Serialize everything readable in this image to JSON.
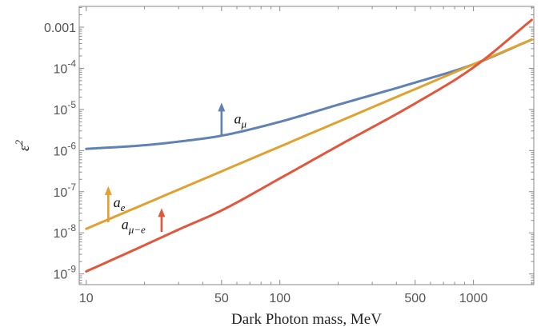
{
  "chart_data": {
    "type": "line",
    "title": "",
    "xlabel": "Dark Photon mass, MeV",
    "ylabel": "ε",
    "ylabel_sup": "2",
    "xscale": "log",
    "yscale": "log",
    "xlim": [
      9.2,
      2050
    ],
    "ylim": [
      5.5e-10,
      0.0032
    ],
    "grid": false,
    "frame": true,
    "x_ticks": [
      {
        "value": 10,
        "label": "10"
      },
      {
        "value": 50,
        "label": "50"
      },
      {
        "value": 100,
        "label": "100"
      },
      {
        "value": 500,
        "label": "500"
      },
      {
        "value": 1000,
        "label": "1000"
      }
    ],
    "y_ticks": [
      {
        "value": 1e-09,
        "base": "10",
        "exp": "-9"
      },
      {
        "value": 1e-08,
        "base": "10",
        "exp": "-8"
      },
      {
        "value": 1e-07,
        "base": "10",
        "exp": "-7"
      },
      {
        "value": 1e-06,
        "base": "10",
        "exp": "-6"
      },
      {
        "value": 1e-05,
        "base": "10",
        "exp": "-5"
      },
      {
        "value": 0.0001,
        "base": "10",
        "exp": "-4"
      },
      {
        "value": 0.001,
        "base": "0.001",
        "exp": ""
      }
    ],
    "series": [
      {
        "key": "mu",
        "color": "#5f81b4",
        "x": [
          10,
          20,
          30,
          50,
          100,
          200,
          500,
          1000,
          2000
        ],
        "y": [
          1.1e-06,
          1.35e-06,
          1.65e-06,
          2.3e-06,
          5e-06,
          1.3e-05,
          4.5e-05,
          0.000125,
          0.0005
        ]
      },
      {
        "key": "e",
        "color": "#e0a12e",
        "x": [
          10,
          2000
        ],
        "y": [
          1.25e-08,
          0.0005
        ]
      },
      {
        "key": "mue",
        "color": "#e2563b",
        "x": [
          10,
          20,
          30,
          50,
          100,
          200,
          500,
          1000,
          2000
        ],
        "y": [
          1.15e-09,
          5e-09,
          1.2e-08,
          3.5e-08,
          2.1e-07,
          1.3e-06,
          1.4e-05,
          0.000105,
          0.0015
        ]
      }
    ],
    "annotations": [
      {
        "series": "mu",
        "x": 50,
        "y_from": 2.3e-06,
        "y_to": 1.4e-05,
        "label": "a",
        "sub": "μ",
        "label_x": 58,
        "label_y": 6e-06
      },
      {
        "series": "e",
        "x": 13,
        "y_from": 1.8e-08,
        "y_to": 1.3e-07,
        "label": "a",
        "sub": "e",
        "label_x": 13.8,
        "label_y": 5.5e-08
      },
      {
        "series": "mue",
        "x": 24.5,
        "y_from": 1.05e-08,
        "y_to": 3.8e-08,
        "label": "a",
        "sub": "μ−e",
        "label_x": 15.2,
        "label_y": 1.6e-08
      }
    ]
  }
}
